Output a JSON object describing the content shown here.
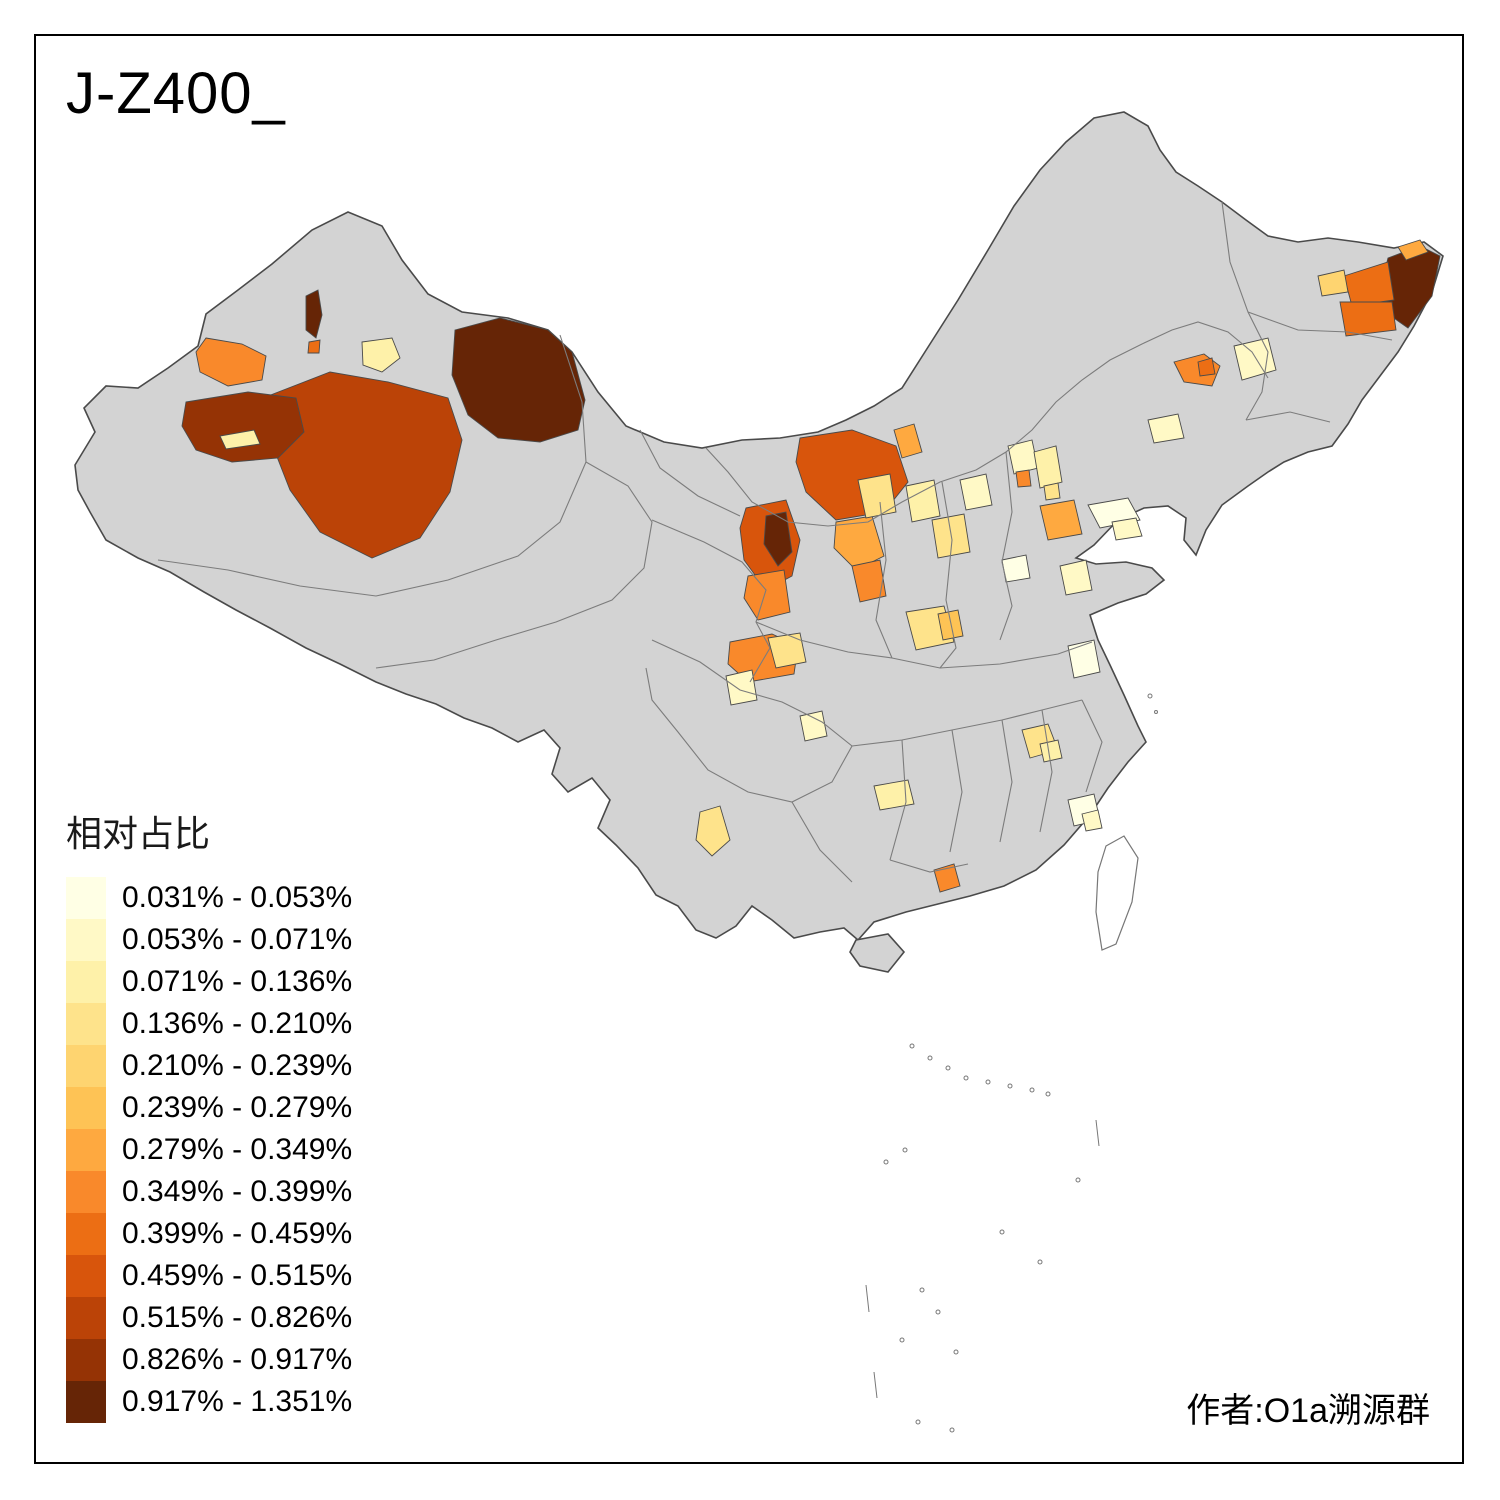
{
  "title": "J-Z400_",
  "legend": {
    "title": "相对占比",
    "items": [
      {
        "label": "0.031% - 0.053%",
        "color": "#FFFFE5"
      },
      {
        "label": "0.053% - 0.071%",
        "color": "#FFF9C6"
      },
      {
        "label": "0.071% - 0.136%",
        "color": "#FEF1A9"
      },
      {
        "label": "0.136% - 0.210%",
        "color": "#FEE38B"
      },
      {
        "label": "0.210% - 0.239%",
        "color": "#FED470"
      },
      {
        "label": "0.239% - 0.279%",
        "color": "#FEC355"
      },
      {
        "label": "0.279% - 0.349%",
        "color": "#FEA940"
      },
      {
        "label": "0.349% - 0.399%",
        "color": "#F9892B"
      },
      {
        "label": "0.399% - 0.459%",
        "color": "#EC6E14"
      },
      {
        "label": "0.459% - 0.515%",
        "color": "#D8550C"
      },
      {
        "label": "0.515% - 0.826%",
        "color": "#BB4307"
      },
      {
        "label": "0.826% - 0.917%",
        "color": "#953305"
      },
      {
        "label": "0.917% - 1.351%",
        "color": "#662506"
      }
    ]
  },
  "map": {
    "land_color": "#d3d3d3",
    "no_data_island_color": "#ffffff"
  },
  "attribution": "作者:O1a溯源群"
}
